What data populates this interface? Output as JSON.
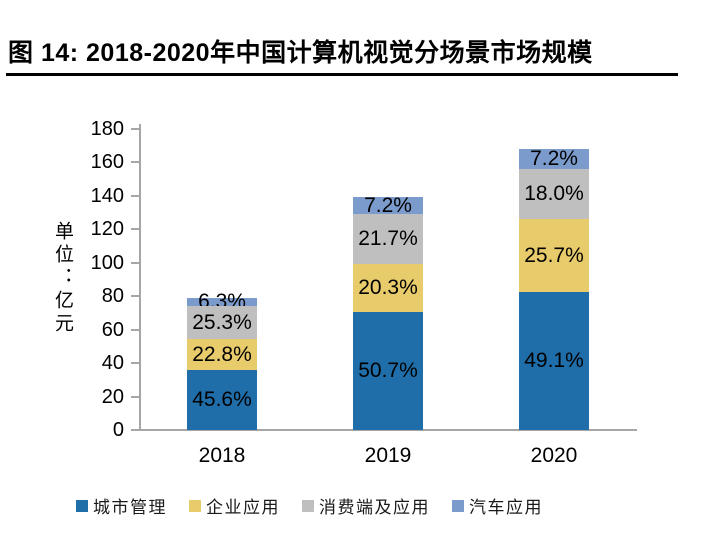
{
  "title": {
    "text": "图 14: 2018-2020年中国计算机视觉分场景市场规模"
  },
  "chart_data": {
    "type": "bar",
    "stacked": true,
    "title": "2018-2020年中国计算机视觉分场景市场规模",
    "ylabel": "单位：亿元",
    "xlabel": "",
    "categories": [
      "2018",
      "2019",
      "2020"
    ],
    "totals": [
      79,
      139,
      168
    ],
    "series": [
      {
        "name": "城市管理",
        "color": "#1f6da9",
        "percent": [
          45.6,
          50.7,
          49.1
        ],
        "labels": [
          "45.6%",
          "50.7%",
          "49.1%"
        ]
      },
      {
        "name": "企业应用",
        "color": "#e8cb6b",
        "percent": [
          22.8,
          20.3,
          25.7
        ],
        "labels": [
          "22.8%",
          "20.3%",
          "25.7%"
        ]
      },
      {
        "name": "消费端及应用",
        "color": "#bfbfbf",
        "percent": [
          25.3,
          21.7,
          18.0
        ],
        "labels": [
          "25.3%",
          "21.7%",
          "18.0%"
        ]
      },
      {
        "name": "汽车应用",
        "color": "#7b9bcd",
        "percent": [
          6.3,
          7.2,
          7.2
        ],
        "labels": [
          "6.3%",
          "7.2%",
          "7.2%"
        ]
      }
    ],
    "ylim": [
      0,
      180
    ],
    "yticks": [
      0,
      20,
      40,
      60,
      80,
      100,
      120,
      140,
      160,
      180
    ],
    "grid": false,
    "legend_position": "bottom",
    "axis_color": "#a6a6a6"
  }
}
